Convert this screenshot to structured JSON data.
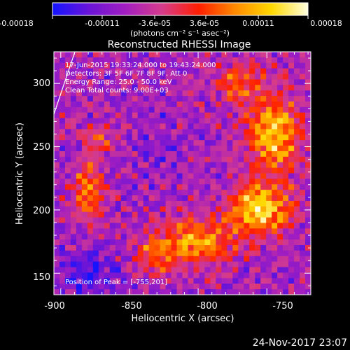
{
  "chart_data": {
    "type": "heatmap",
    "title": "Reconstructed RHESSI Image",
    "xlabel": "Heliocentric X (arcsec)",
    "ylabel": "Heliocentric Y (arcsec)",
    "x_ticks": [
      "-900",
      "-850",
      "-800",
      "-750"
    ],
    "x_tick_values": [
      -900,
      -850,
      -800,
      -750
    ],
    "y_ticks": [
      "150",
      "200",
      "250",
      "300"
    ],
    "y_tick_values": [
      150,
      200,
      250,
      300
    ],
    "xlim": [
      -905,
      -718
    ],
    "ylim": [
      133,
      325
    ],
    "colorbar": {
      "tick_labels": [
        "-0.00018",
        "-0.00011",
        "-3.6e-05",
        "3.6e-05",
        "0.00011",
        "0.00018"
      ],
      "range": [
        -0.00018,
        0.00018
      ],
      "units_label": "(photons cm⁻² s⁻¹ asec⁻²)",
      "colors": [
        "#1414ff",
        "#6a14d8",
        "#a21ec0",
        "#d63c8c",
        "#ff1e00",
        "#ff8a00",
        "#ffd800",
        "#ffffe0"
      ]
    },
    "annotations": {
      "time_range": "17-Jun-2015 19:33:24.000 to 19:43:24.000",
      "detectors": "Detectors: 3F 5F 6F 7F 8F 9F, Att 0",
      "energy": "Energy Range: 25.0 - 50.0 keV",
      "clean": "Clean     Total counts: 9.00E+03",
      "peak": "Position of Peak = [-755,201]"
    },
    "peak_position": [
      -755,
      201
    ]
  },
  "footer": {
    "timestamp": "24-Nov-2017 23:07"
  }
}
